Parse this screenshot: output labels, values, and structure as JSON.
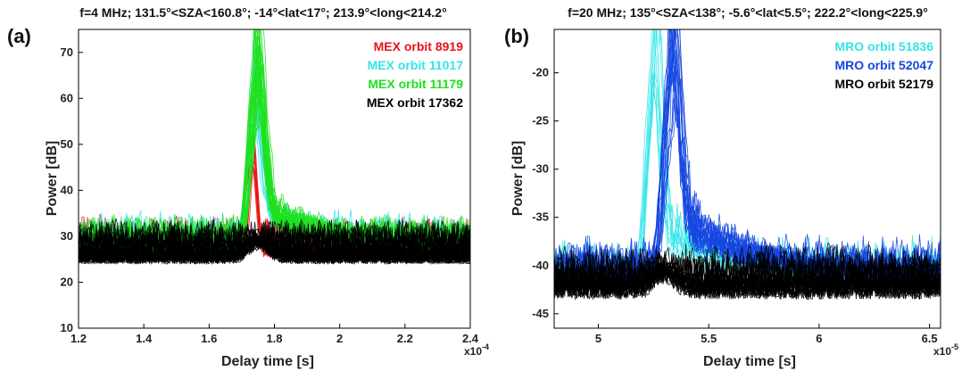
{
  "chart_data": [
    {
      "type": "line",
      "panel_label": "(a)",
      "title": "f=4 MHz;   131.5°<SZA<160.8°;   -14°<lat<17°;   213.9°<long<214.2°",
      "xlabel": "Delay time [s]",
      "ylabel": "Power [dB]",
      "x_multiplier": "x10",
      "x_multiplier_exp": "-4",
      "xlim": [
        1.2,
        2.4
      ],
      "ylim": [
        10,
        75
      ],
      "xticks": [
        "1.2",
        "1.4",
        "1.6",
        "1.8",
        "2",
        "2.2",
        "2.4"
      ],
      "yticks": [
        "10",
        "20",
        "30",
        "40",
        "50",
        "60",
        "70"
      ],
      "legend_position": "top-right",
      "grid": false,
      "series": [
        {
          "name": "MEX orbit 8919",
          "color": "#e8141a",
          "noise_level": 26,
          "noise_spread": 9,
          "peak_x": 1.735,
          "peak_y": 55,
          "peak_width": 0.012,
          "tail_level": 0,
          "tail_decay": 0.1
        },
        {
          "name": "MEX orbit 11017",
          "color": "#33e4e8",
          "noise_level": 28,
          "noise_spread": 8,
          "peak_x": 1.74,
          "peak_y": 62,
          "peak_width": 0.02,
          "tail_level": 12,
          "tail_decay": 0.25
        },
        {
          "name": "MEX orbit 11179",
          "color": "#1fe01f",
          "noise_level": 26,
          "noise_spread": 9,
          "peak_x": 1.745,
          "peak_y": 71,
          "peak_width": 0.022,
          "tail_level": 14,
          "tail_decay": 0.3
        },
        {
          "name": "MEX orbit 17362",
          "color": "#000000",
          "noise_level": 25,
          "noise_spread": 9,
          "peak_x": 1.75,
          "peak_y": 30,
          "peak_width": 0.03,
          "tail_level": 0,
          "tail_decay": 0.1
        }
      ]
    },
    {
      "type": "line",
      "panel_label": "(b)",
      "title": "f=20 MHz;   135°<SZA<138°;   -5.6°<lat<5.5°;   222.2°<long<225.9°",
      "xlabel": "Delay time [s]",
      "ylabel": "Power [dB]",
      "x_multiplier": "x10",
      "x_multiplier_exp": "-5",
      "xlim": [
        4.8,
        6.55
      ],
      "ylim": [
        -46.5,
        -15.5
      ],
      "xticks": [
        "5",
        "5.5",
        "6",
        "6.5"
      ],
      "yticks": [
        "-45",
        "-40",
        "-35",
        "-30",
        "-25",
        "-20"
      ],
      "legend_position": "top-right",
      "grid": false,
      "series": [
        {
          "name": "MRO orbit 51836",
          "color": "#33e4e8",
          "noise_level": -41.5,
          "noise_spread": 4.5,
          "peak_x": 5.25,
          "peak_y": -16,
          "peak_width": 0.03,
          "tail_level": 8,
          "tail_decay": 0.35
        },
        {
          "name": "MRO orbit 52047",
          "color": "#1546e0",
          "noise_level": -41.5,
          "noise_spread": 4.5,
          "peak_x": 5.33,
          "peak_y": -18,
          "peak_width": 0.035,
          "tail_level": 9,
          "tail_decay": 0.4
        },
        {
          "name": "MRO orbit 52179",
          "color": "#000000",
          "noise_level": -42.5,
          "noise_spread": 4.5,
          "peak_x": 5.3,
          "peak_y": -40,
          "peak_width": 0.05,
          "tail_level": 0,
          "tail_decay": 0.1
        }
      ]
    }
  ]
}
